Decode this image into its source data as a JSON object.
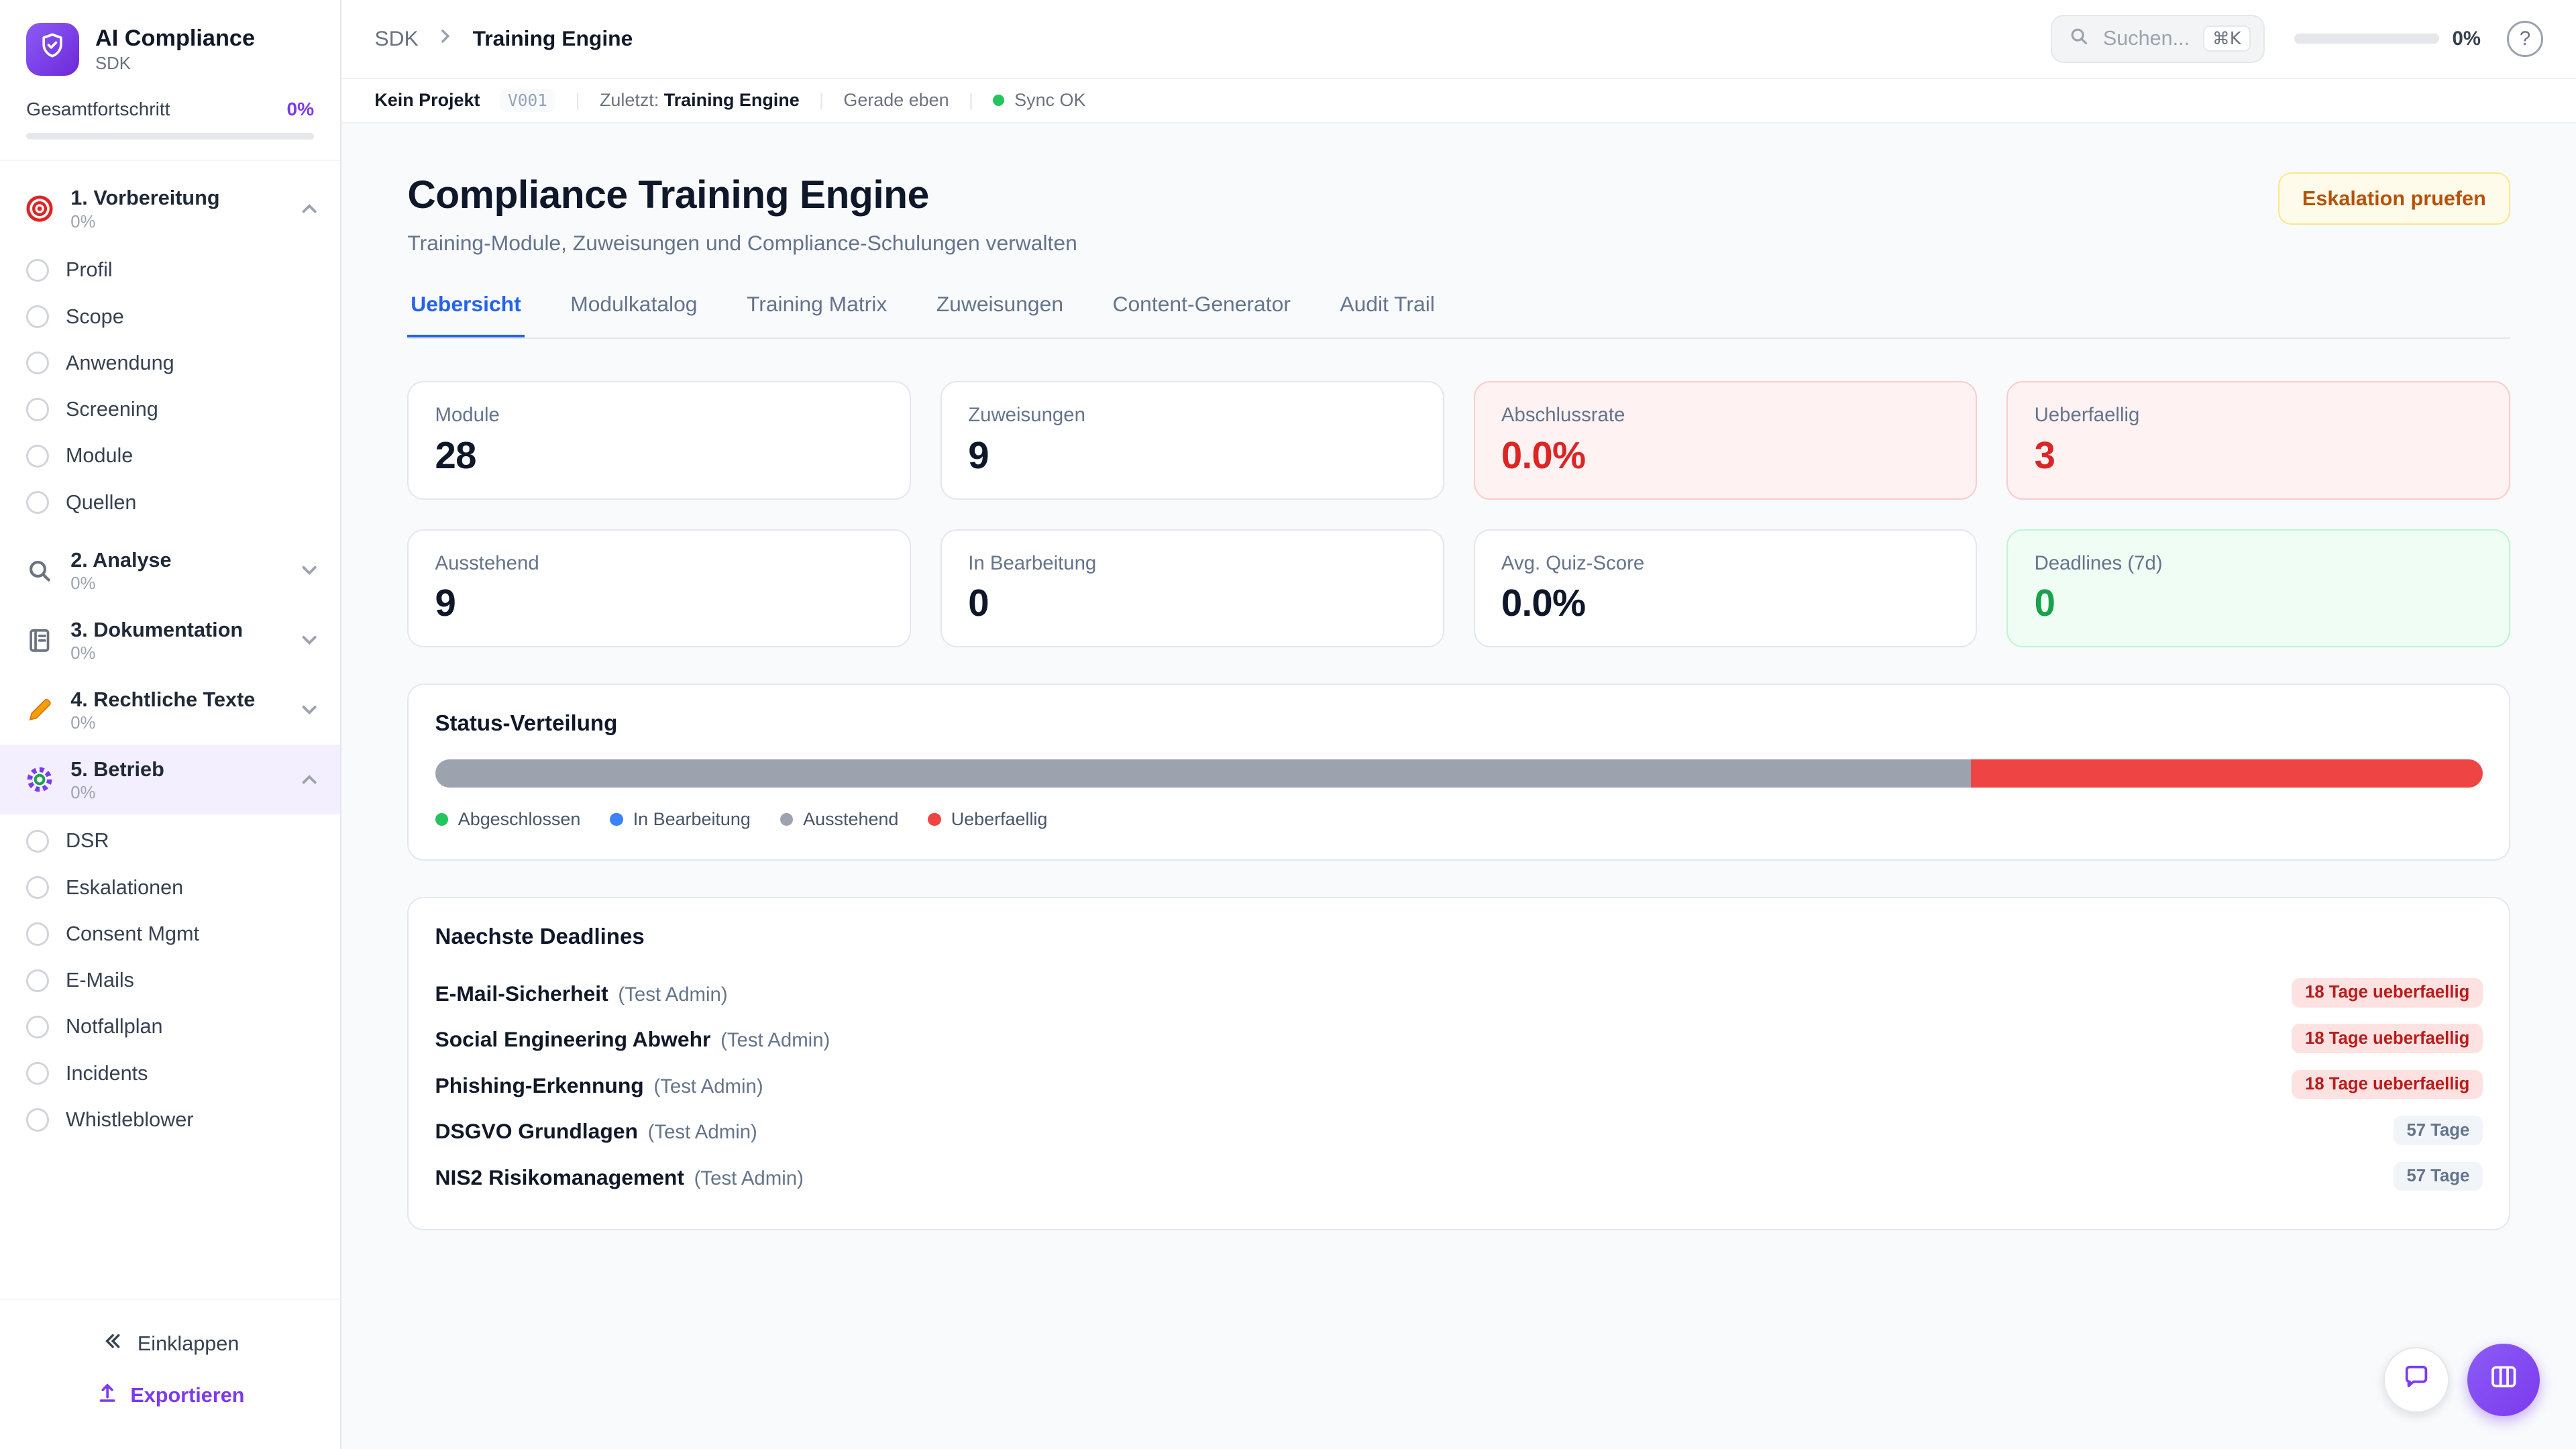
{
  "colors": {
    "accent_purple": "#7c3aed",
    "tab_active_blue": "#2563eb",
    "danger_red": "#dc2626",
    "success_green": "#16a34a",
    "overdue_badge_bg": "#fee2e2",
    "warn_button_bg": "#fffbeb"
  },
  "icons": [
    "shield-icon",
    "target-icon",
    "magnifier-icon",
    "notebook-icon",
    "pencil-icon",
    "gear-icon",
    "chevron-up-icon",
    "chevron-down-icon",
    "chevron-right-icon",
    "search-icon",
    "help-icon",
    "collapse-icon",
    "export-icon",
    "chat-icon",
    "columns-icon",
    "sync-dot-icon"
  ],
  "sidebar": {
    "logo_title": "AI Compliance",
    "logo_subtitle": "SDK",
    "progress_label": "Gesamtfortschritt",
    "progress_value": "0%",
    "sections": [
      {
        "label": "1. Vorbereitung",
        "pct": "0%",
        "items": [
          "Profil",
          "Scope",
          "Anwendung",
          "Screening",
          "Module",
          "Quellen"
        ]
      },
      {
        "label": "2. Analyse",
        "pct": "0%"
      },
      {
        "label": "3. Dokumentation",
        "pct": "0%"
      },
      {
        "label": "4. Rechtliche Texte",
        "pct": "0%"
      },
      {
        "label": "5. Betrieb",
        "pct": "0%",
        "items": [
          "DSR",
          "Eskalationen",
          "Consent Mgmt",
          "E-Mails",
          "Notfallplan",
          "Incidents",
          "Whistleblower"
        ]
      }
    ],
    "collapse_label": "Einklappen",
    "export_label": "Exportieren"
  },
  "header": {
    "breadcrumb_root": "SDK",
    "breadcrumb_current": "Training Engine",
    "search_placeholder": "Suchen...",
    "search_shortcut": "⌘K",
    "progress_value": "0%"
  },
  "statusbar": {
    "project": "Kein Projekt",
    "version": "V001",
    "last_label": "Zuletzt:",
    "last_value": "Training Engine",
    "time": "Gerade eben",
    "sync": "Sync OK"
  },
  "main": {
    "title": "Compliance Training Engine",
    "subtitle": "Training-Module, Zuweisungen und Compliance-Schulungen verwalten",
    "action_button": "Eskalation pruefen",
    "tabs": [
      {
        "label": "Uebersicht",
        "active": true
      },
      {
        "label": "Modulkatalog",
        "active": false
      },
      {
        "label": "Training Matrix",
        "active": false
      },
      {
        "label": "Zuweisungen",
        "active": false
      },
      {
        "label": "Content-Generator",
        "active": false
      },
      {
        "label": "Audit Trail",
        "active": false
      }
    ],
    "stats": [
      {
        "label": "Module",
        "value": "28",
        "variant": "default"
      },
      {
        "label": "Zuweisungen",
        "value": "9",
        "variant": "default"
      },
      {
        "label": "Abschlussrate",
        "value": "0.0%",
        "variant": "danger"
      },
      {
        "label": "Ueberfaellig",
        "value": "3",
        "variant": "danger"
      },
      {
        "label": "Ausstehend",
        "value": "9",
        "variant": "default"
      },
      {
        "label": "In Bearbeitung",
        "value": "0",
        "variant": "default"
      },
      {
        "label": "Avg. Quiz-Score",
        "value": "0.0%",
        "variant": "default"
      },
      {
        "label": "Deadlines (7d)",
        "value": "0",
        "variant": "success"
      }
    ],
    "status_chart": {
      "type": "bar",
      "title": "Status-Verteilung",
      "segments": [
        {
          "name": "Ausstehend",
          "color": "#9ca3af",
          "pct": 75
        },
        {
          "name": "Ueberfaellig",
          "color": "#ef4444",
          "pct": 25
        }
      ],
      "legend": [
        {
          "label": "Abgeschlossen",
          "color": "#22c55e"
        },
        {
          "label": "In Bearbeitung",
          "color": "#3b82f6"
        },
        {
          "label": "Ausstehend",
          "color": "#9ca3af"
        },
        {
          "label": "Ueberfaellig",
          "color": "#ef4444"
        }
      ]
    },
    "deadlines": {
      "title": "Naechste Deadlines",
      "rows": [
        {
          "name": "E-Mail-Sicherheit",
          "assignee": "(Test Admin)",
          "badge": "18 Tage ueberfaellig",
          "variant": "overdue"
        },
        {
          "name": "Social Engineering Abwehr",
          "assignee": "(Test Admin)",
          "badge": "18 Tage ueberfaellig",
          "variant": "overdue"
        },
        {
          "name": "Phishing-Erkennung",
          "assignee": "(Test Admin)",
          "badge": "18 Tage ueberfaellig",
          "variant": "overdue"
        },
        {
          "name": "DSGVO Grundlagen",
          "assignee": "(Test Admin)",
          "badge": "57 Tage",
          "variant": "normal"
        },
        {
          "name": "NIS2 Risikomanagement",
          "assignee": "(Test Admin)",
          "badge": "57 Tage",
          "variant": "normal"
        }
      ]
    }
  }
}
